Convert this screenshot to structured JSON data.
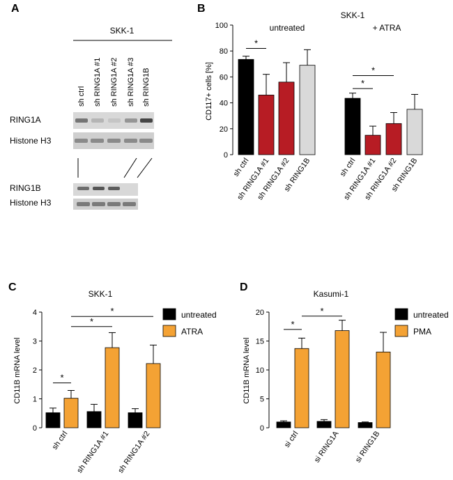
{
  "panels": {
    "a": "A",
    "b": "B",
    "c": "C",
    "d": "D"
  },
  "blot": {
    "cell_line": "SKK-1",
    "lanes": [
      "sh ctrl",
      "sh RING1A #1",
      "sh RING1A #2",
      "sh RING1A #3",
      "sh RING1B"
    ],
    "row_labels": [
      "RING1A",
      "Histone H3",
      "RING1B",
      "Histone H3"
    ],
    "ring1a_band_intensity": [
      0.55,
      0.15,
      0.05,
      0.35,
      0.85
    ],
    "ring1b_band_intensity": [
      0.6,
      0.75,
      0.7,
      0.0
    ]
  },
  "chart_data": [
    {
      "id": "B",
      "type": "bar",
      "title": "SKK-1",
      "group_labels": [
        "untreated",
        "+ ATRA"
      ],
      "ylabel": "CD117+ cells [%]",
      "xlabel": "",
      "ylim": [
        0,
        100
      ],
      "yticks": [
        0,
        20,
        40,
        60,
        80,
        100
      ],
      "categories": [
        "sh ctrl",
        "sh RING1A #1",
        "sh RING1A #2",
        "sh RING1B",
        "sh ctrl",
        "sh RING1A #1",
        "sh RING1A #2",
        "sh RING1B"
      ],
      "values": [
        73.5,
        46,
        56,
        69,
        43.5,
        15,
        24,
        35
      ],
      "errors": [
        2.5,
        16,
        15,
        12,
        4,
        7,
        8.5,
        11.5
      ],
      "colors": [
        "#000000",
        "#b71c24",
        "#b71c24",
        "#d9d9d9",
        "#000000",
        "#b71c24",
        "#b71c24",
        "#d9d9d9"
      ],
      "significance": [
        {
          "from": 0,
          "to": 1,
          "y": 82,
          "label": "*"
        },
        {
          "from": 4,
          "to": 6,
          "y": 61,
          "label": "*"
        },
        {
          "from": 4,
          "to": 5,
          "y": 51,
          "label": "*"
        }
      ]
    },
    {
      "id": "C",
      "type": "bar",
      "title": "SKK-1",
      "ylabel": "CD11B mRNA level",
      "xlabel": "",
      "ylim": [
        0,
        4
      ],
      "yticks": [
        0,
        1,
        2,
        3,
        4
      ],
      "categories": [
        "sh ctrl",
        "sh RING1A #1",
        "sh RING1A #2"
      ],
      "series": [
        {
          "name": "untreated",
          "color": "#000000",
          "values": [
            0.52,
            0.56,
            0.52
          ],
          "errors": [
            0.16,
            0.25,
            0.14
          ]
        },
        {
          "name": "ATRA",
          "color": "#f4a234",
          "values": [
            1.02,
            2.77,
            2.22
          ],
          "errors": [
            0.27,
            0.52,
            0.64
          ]
        }
      ],
      "legend": [
        "untreated",
        "ATRA"
      ],
      "significance": [
        {
          "from": [
            0,
            0
          ],
          "to": [
            0,
            1
          ],
          "y": 1.55,
          "label": "*"
        },
        {
          "from": [
            0,
            1
          ],
          "to": [
            1,
            1
          ],
          "y": 3.5,
          "label": "*"
        },
        {
          "from": [
            0,
            1
          ],
          "to": [
            2,
            1
          ],
          "y": 3.85,
          "label": "*"
        }
      ]
    },
    {
      "id": "D",
      "type": "bar",
      "title": "Kasumi-1",
      "ylabel": "CD11B mRNA level",
      "xlabel": "",
      "ylim": [
        0,
        20
      ],
      "yticks": [
        0,
        5,
        10,
        15,
        20
      ],
      "categories": [
        "si ctrl",
        "si RING1A",
        "si RING1B"
      ],
      "series": [
        {
          "name": "untreated",
          "color": "#000000",
          "values": [
            1.0,
            1.1,
            0.9
          ],
          "errors": [
            0.2,
            0.3,
            0.1
          ]
        },
        {
          "name": "PMA",
          "color": "#f4a234",
          "values": [
            13.7,
            16.8,
            13.1
          ],
          "errors": [
            1.8,
            1.8,
            3.4
          ]
        }
      ],
      "legend": [
        "untreated",
        "PMA"
      ],
      "significance": [
        {
          "from": [
            0,
            0
          ],
          "to": [
            0,
            1
          ],
          "y": 17.0,
          "label": "*"
        },
        {
          "from": [
            0,
            1
          ],
          "to": [
            1,
            1
          ],
          "y": 19.3,
          "label": "*"
        }
      ]
    }
  ]
}
